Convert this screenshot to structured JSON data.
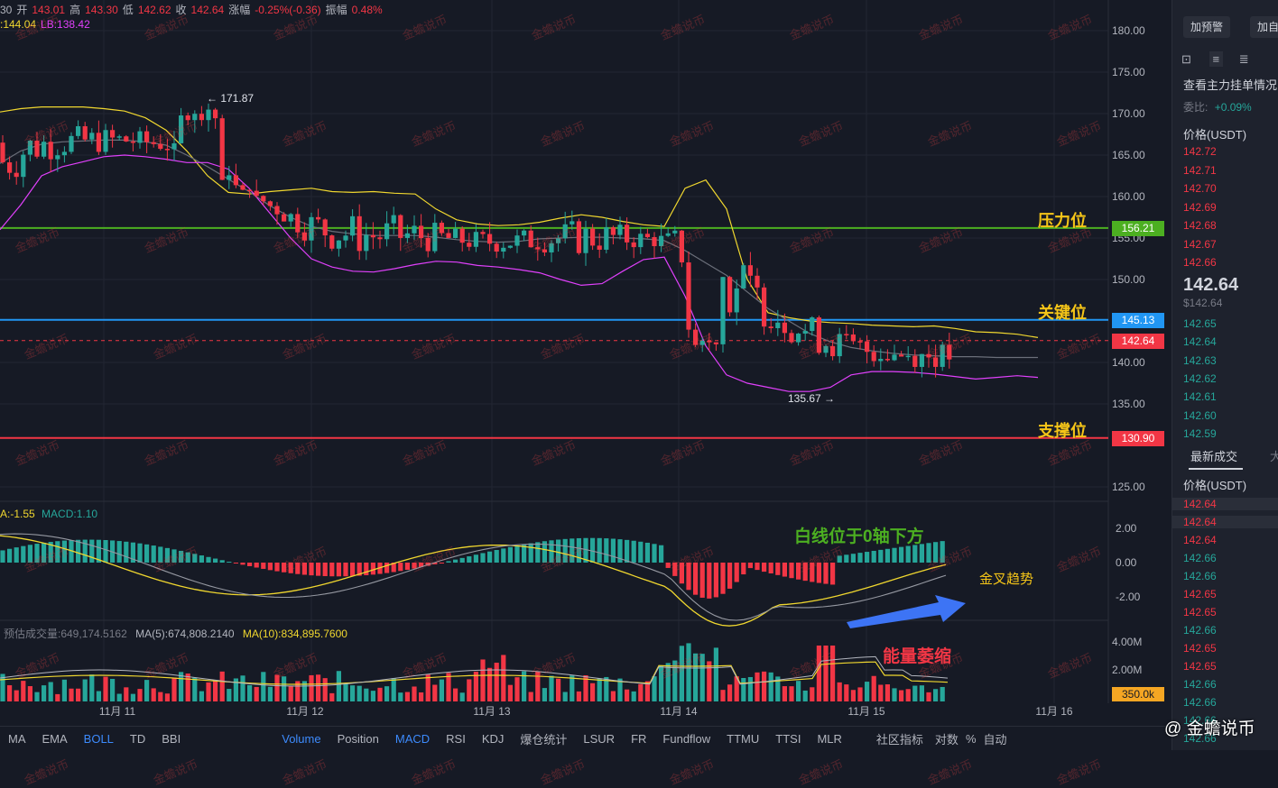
{
  "header": {
    "ohlc_line": [
      {
        "text": "30",
        "color": "#b2b5be"
      },
      {
        "text": "开",
        "color": "#b2b5be"
      },
      {
        "text": "143.01",
        "color": "#f23645"
      },
      {
        "text": "高",
        "color": "#b2b5be"
      },
      {
        "text": "143.30",
        "color": "#f23645"
      },
      {
        "text": "低",
        "color": "#b2b5be"
      },
      {
        "text": "142.62",
        "color": "#f23645"
      },
      {
        "text": "收",
        "color": "#b2b5be"
      },
      {
        "text": "142.64",
        "color": "#f23645"
      },
      {
        "text": "涨幅",
        "color": "#b2b5be"
      },
      {
        "text": "-0.25%(-0.36)",
        "color": "#f23645"
      },
      {
        "text": "振幅",
        "color": "#b2b5be"
      },
      {
        "text": "0.48%",
        "color": "#f23645"
      }
    ],
    "boll_line": [
      {
        "text": ":144.04",
        "color": "#f0d72f"
      },
      {
        "text": "LB:138.42",
        "color": "#e040fb"
      }
    ]
  },
  "price_axis": {
    "ticks": [
      "180.00",
      "175.00",
      "170.00",
      "165.00",
      "160.00",
      "155.00",
      "150.00",
      "140.00",
      "135.00",
      "125.00"
    ],
    "tick_values": [
      180,
      175,
      170,
      165,
      160,
      155,
      150,
      140,
      135,
      125
    ],
    "macd_ticks": [
      "2.00",
      "0.00",
      "-2.00"
    ],
    "vol_ticks": [
      "4.00M",
      "2.00M"
    ]
  },
  "time_axis": {
    "labels": [
      "11月 11",
      "11月 12",
      "11月 13",
      "11月 14",
      "11月 15",
      "11月 16"
    ]
  },
  "levels": [
    {
      "name": "压力位",
      "value": 156.21,
      "label": "156.21",
      "line_color": "#4caf21",
      "badge_color": "#4caf21",
      "text_color": "#f5c518"
    },
    {
      "name": "关键位",
      "value": 145.13,
      "label": "145.13",
      "line_color": "#2196f3",
      "badge_color": "#2196f3",
      "text_color": "#f5c518"
    },
    {
      "name": "支撑位",
      "value": 130.9,
      "label": "130.90",
      "line_color": "#f23645",
      "badge_color": "#f23645",
      "text_color": "#f5c518"
    }
  ],
  "current_price": {
    "value": 142.64,
    "label": "142.64",
    "color": "#f23645"
  },
  "annotations": {
    "high_label": "← 171.87",
    "low_label": "135.67 →",
    "macd_note": "白线位于0轴下方",
    "golden_cross": "金叉趋势",
    "volume_note": "能量萎缩"
  },
  "macd_header": {
    "dif": "A:-1.55",
    "macd": "MACD:1.10"
  },
  "volume_header": {
    "est": "预估成交量:649,174.5162",
    "ma5": "MA(5):674,808.2140",
    "ma10": "MA(10):834,895.7600",
    "current_badge": "350.0k"
  },
  "bottom_toolbar": {
    "items": [
      "MA",
      "EMA",
      "BOLL",
      "TD",
      "BBI",
      "Volume",
      "Position",
      "MACD",
      "RSI",
      "KDJ",
      "爆仓统计",
      "LSUR",
      "FR",
      "Fundflow",
      "TTMU",
      "TTSI",
      "MLR"
    ],
    "active": [
      "BOLL",
      "Volume",
      "MACD"
    ],
    "community": "社区指标",
    "right_a": "对数",
    "right_b": "%",
    "right_c": "自动",
    "watermark_brand": "@ 金蟾说币"
  },
  "watermark_text": "金蟾说币",
  "sidebar": {
    "top_buttons": [
      "加预警",
      "加自"
    ],
    "orderbook_title": "查看主力挂单情况",
    "ratio_label": "委比:",
    "ratio_value": "+0.09%",
    "price_header": "价格(USDT)",
    "asks": [
      "142.72",
      "142.71",
      "142.70",
      "142.69",
      "142.68",
      "142.67",
      "142.66"
    ],
    "last_price": "142.64",
    "last_price_usd": "$142.64",
    "bids": [
      "142.65",
      "142.64",
      "142.63",
      "142.62",
      "142.61",
      "142.60",
      "142.59"
    ],
    "trades_tab": "最新成交",
    "trades_tab2": "大",
    "trades_header": "价格(USDT)",
    "trades": [
      {
        "p": "142.64",
        "c": "red"
      },
      {
        "p": "142.64",
        "c": "red"
      },
      {
        "p": "142.64",
        "c": "red"
      },
      {
        "p": "142.66",
        "c": "green"
      },
      {
        "p": "142.66",
        "c": "green"
      },
      {
        "p": "142.65",
        "c": "red"
      },
      {
        "p": "142.65",
        "c": "red"
      },
      {
        "p": "142.66",
        "c": "green"
      },
      {
        "p": "142.65",
        "c": "red"
      },
      {
        "p": "142.65",
        "c": "red"
      },
      {
        "p": "142.66",
        "c": "green"
      },
      {
        "p": "142.66",
        "c": "green"
      },
      {
        "p": "142.66",
        "c": "green"
      },
      {
        "p": "142.66",
        "c": "green"
      }
    ]
  },
  "chart_data": {
    "type": "candlestick",
    "boll_upper": [
      170.2,
      170.6,
      170.8,
      170.8,
      170.8,
      170.6,
      170.3,
      169.5,
      168.0,
      165.5,
      162.5,
      160.5,
      160.3,
      160.6,
      160.8,
      161.0,
      160.6,
      160.5,
      160.6,
      160.4,
      160.3,
      158.5,
      157.2,
      156.7,
      156.5,
      156.6,
      156.9,
      157.4,
      157.8,
      157.5,
      157.0,
      156.6,
      156.4,
      161.0,
      162.0,
      158.5,
      150.0,
      146.0,
      145.4,
      145.0,
      144.8,
      144.7,
      144.5,
      144.4,
      144.3,
      144.4,
      144.1,
      143.7,
      143.6,
      143.4,
      143.0
    ],
    "boll_middle": [
      164.0,
      165.5,
      166.3,
      166.6,
      166.7,
      166.8,
      166.8,
      166.6,
      166.2,
      165.0,
      163.6,
      162.1,
      160.6,
      158.9,
      157.5,
      156.4,
      155.8,
      155.5,
      155.3,
      155.3,
      155.3,
      155.1,
      154.8,
      154.6,
      154.5,
      154.6,
      154.9,
      155.0,
      155.1,
      155.1,
      155.0,
      154.9,
      154.7,
      153.5,
      152.0,
      150.5,
      148.5,
      146.5,
      145.0,
      143.5,
      142.5,
      141.8,
      141.4,
      141.1,
      140.9,
      140.8,
      140.7,
      140.7,
      140.6,
      140.6,
      140.6
    ],
    "boll_lower": [
      156.0,
      159.0,
      162.5,
      163.6,
      164.2,
      164.8,
      165.0,
      164.8,
      164.5,
      164.1,
      164.1,
      163.3,
      161.0,
      158.0,
      155.0,
      152.5,
      151.5,
      151.0,
      150.9,
      151.3,
      151.8,
      152.2,
      152.1,
      151.7,
      151.5,
      151.2,
      150.8,
      150.0,
      149.3,
      149.5,
      151.0,
      152.4,
      152.7,
      148.0,
      142.0,
      138.5,
      137.5,
      137.0,
      136.5,
      136.5,
      137.0,
      138.5,
      138.9,
      138.9,
      138.8,
      138.6,
      138.3,
      138.0,
      138.2,
      138.4,
      138.2
    ],
    "high": 171.87,
    "low": 135.67,
    "close": 142.64,
    "ylim": [
      122.5,
      182.5
    ]
  }
}
